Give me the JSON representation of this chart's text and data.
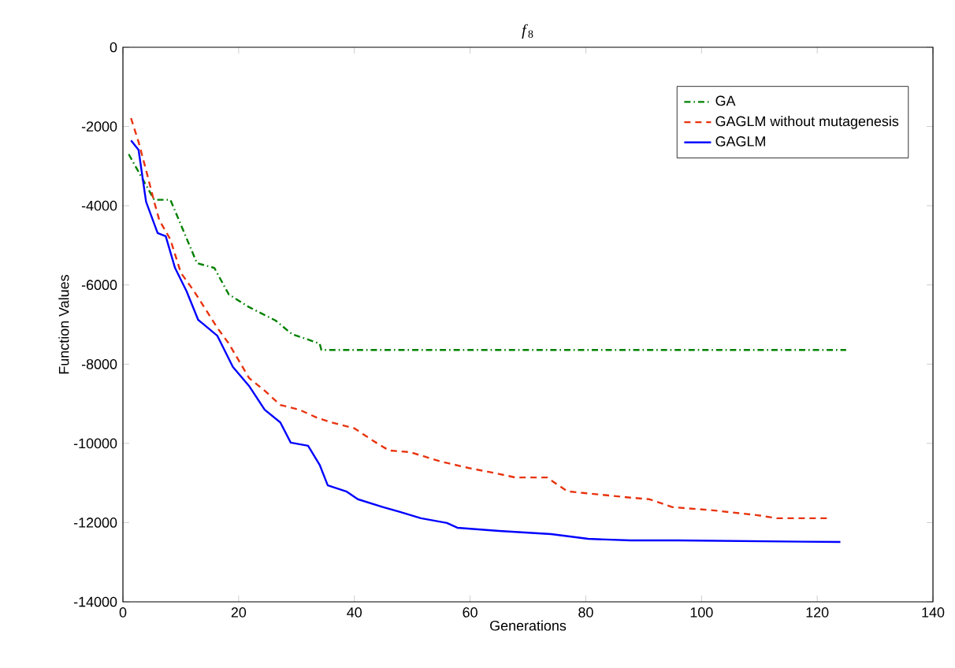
{
  "chart_data": {
    "type": "line",
    "title": "*f*$_{8}$",
    "xlabel": "Generations",
    "ylabel": "Function Values",
    "xlim": [
      0,
      140
    ],
    "xticks": [
      0,
      20,
      40,
      60,
      80,
      100,
      120,
      140
    ],
    "ylim": [
      -14000,
      0
    ],
    "yticks": [
      -14000,
      -12000,
      -10000,
      -8000,
      -6000,
      -4000,
      -2000,
      0
    ],
    "grid": false,
    "legend": "top right",
    "marker": "none",
    "series": [
      {
        "name": "GA",
        "color": "#008000",
        "line_style": "dashdot",
        "x": [
          1,
          5.4,
          8.2,
          12.8,
          15.8,
          18.3,
          21.8,
          26.4,
          29.2,
          34,
          34.3,
          125
        ],
        "values": [
          -2700,
          -3850,
          -3850,
          -5450,
          -5570,
          -6240,
          -6560,
          -6900,
          -7240,
          -7480,
          -7640,
          -7640
        ]
      },
      {
        "name": "GAGLM without mutagenesis",
        "color": "#e8330e",
        "line_style": "dashed",
        "x": [
          1.4,
          2.7,
          4,
          5.4,
          6.3,
          8.2,
          10,
          12.3,
          14.4,
          16.3,
          18.3,
          21.8,
          24.5,
          27.2,
          30.5,
          33.5,
          36,
          40,
          43.3,
          46,
          49.6,
          55,
          59.7,
          64,
          67.8,
          73.3,
          76.8,
          82.3,
          87.7,
          91,
          95,
          102,
          109.5,
          113,
          122.3
        ],
        "values": [
          -1790,
          -2390,
          -3100,
          -3900,
          -4370,
          -4850,
          -5690,
          -6160,
          -6640,
          -7080,
          -7480,
          -8350,
          -8670,
          -9030,
          -9150,
          -9350,
          -9470,
          -9620,
          -9940,
          -10180,
          -10220,
          -10460,
          -10620,
          -10740,
          -10860,
          -10860,
          -11210,
          -11290,
          -11370,
          -11410,
          -11610,
          -11690,
          -11810,
          -11890,
          -11890
        ]
      },
      {
        "name": "GAGLM",
        "color": "#0000ff",
        "line_style": "solid",
        "x": [
          1.4,
          2.7,
          4,
          6,
          7.4,
          9,
          11,
          13,
          16.3,
          19,
          21.8,
          24.5,
          27.2,
          29,
          32,
          34,
          35.4,
          38.7,
          40.6,
          45,
          48.8,
          51.5,
          56,
          57.8,
          65,
          74,
          80.4,
          87.7,
          96,
          124
        ],
        "values": [
          -2350,
          -2590,
          -3900,
          -4690,
          -4770,
          -5570,
          -6160,
          -6880,
          -7280,
          -8070,
          -8550,
          -9150,
          -9470,
          -9980,
          -10060,
          -10540,
          -11060,
          -11220,
          -11410,
          -11610,
          -11770,
          -11890,
          -12010,
          -12130,
          -12210,
          -12290,
          -12410,
          -12450,
          -12450,
          -12490
        ]
      }
    ]
  }
}
